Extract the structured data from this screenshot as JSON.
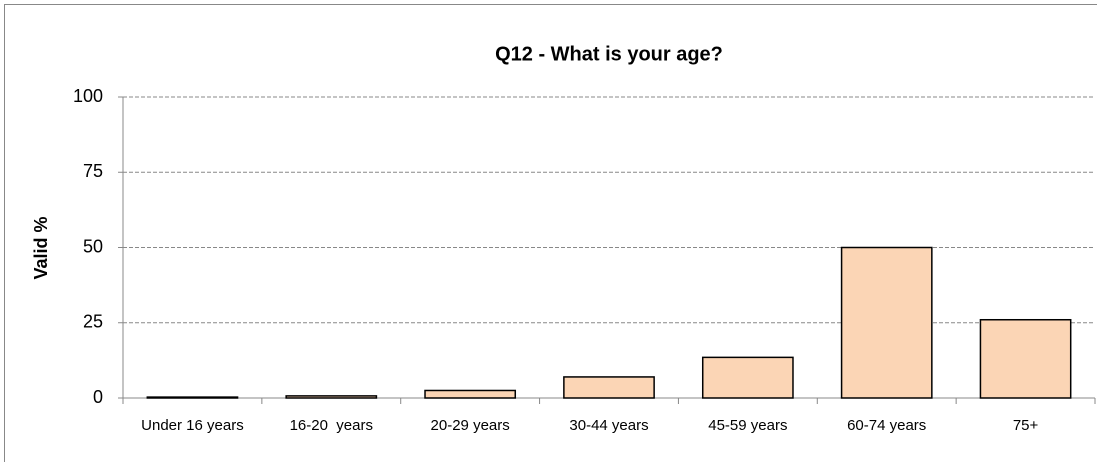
{
  "chart_data": {
    "type": "bar",
    "title": "Q12 - What is your age?",
    "y_label": "Valid %",
    "categories": [
      "Under 16 years",
      "16-20  years",
      "20-29 years",
      "30-44 years",
      "45-59 years",
      "60-74 years",
      "75+"
    ],
    "values": [
      0.3,
      0.7,
      2.5,
      7,
      13.5,
      50,
      26
    ],
    "color": "#fbd5b5",
    "ylim": [
      0,
      100
    ],
    "yticks": [
      0,
      25,
      50,
      75,
      100
    ],
    "grid": true
  }
}
